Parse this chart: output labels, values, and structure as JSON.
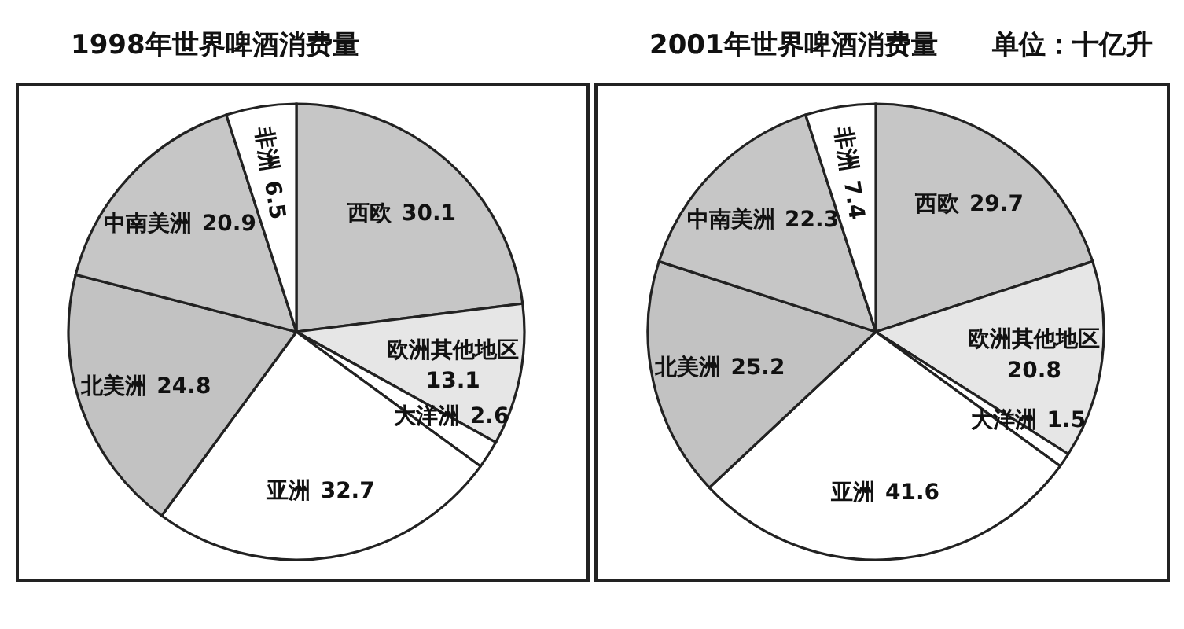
{
  "chart_data": [
    {
      "type": "pie",
      "title": "1998年世界啤酒消费量",
      "categories": [
        "西欧",
        "欧洲其他地区",
        "大洋洲",
        "亚洲",
        "北美洲",
        "中南美洲",
        "非洲"
      ],
      "values": [
        30.1,
        13.1,
        2.6,
        32.7,
        24.8,
        20.9,
        6.5
      ],
      "colors": [
        "#c6c6c6",
        "#e6e6e6",
        "#ffffff",
        "#ffffff",
        "#c2c2c2",
        "#c6c6c6",
        "#ffffff"
      ],
      "data_labels": true
    },
    {
      "type": "pie",
      "title": "2001年世界啤酒消费量",
      "categories": [
        "西欧",
        "欧洲其他地区",
        "大洋洲",
        "亚洲",
        "北美洲",
        "中南美洲",
        "非洲"
      ],
      "values": [
        29.7,
        20.8,
        1.5,
        41.6,
        25.2,
        22.3,
        7.4
      ],
      "colors": [
        "#c6c6c6",
        "#e6e6e6",
        "#ffffff",
        "#ffffff",
        "#c2c2c2",
        "#c6c6c6",
        "#ffffff"
      ],
      "data_labels": true,
      "annotations": [
        "单位：十亿升"
      ]
    }
  ]
}
